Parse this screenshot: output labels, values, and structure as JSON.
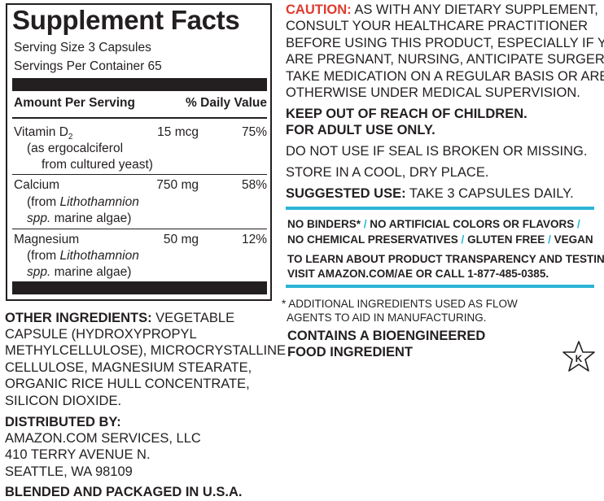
{
  "facts": {
    "title": "Supplement Facts",
    "serving_size": "Serving Size 3 Capsules",
    "servings_per_container": "Servings Per Container 65",
    "col_amount": "Amount Per Serving",
    "col_dv": "% Daily Value",
    "rows": [
      {
        "name": "Vitamin D",
        "name_sub": "2",
        "amount": "15 mcg",
        "dv": "75%",
        "line2": "(as ergocalciferol",
        "line3": "from cultured yeast)"
      },
      {
        "name": "Calcium",
        "amount": "750 mg",
        "dv": "58%",
        "line2_pre": "(from ",
        "line2_italic": "Lithothamnion",
        "line3_italic": "spp.",
        "line3_post": " marine algae)"
      },
      {
        "name": "Magnesium",
        "amount": "50 mg",
        "dv": "12%",
        "line2_pre": "(from ",
        "line2_italic": "Lithothamnion",
        "line3_italic": "spp.",
        "line3_post": " marine algae)"
      }
    ]
  },
  "other": {
    "label": "OTHER INGREDIENTS:",
    "l1": " VEGETABLE",
    "l2": "CAPSULE (HYDROXYPROPYL",
    "l3": "METHYLCELLULOSE), MICROCRYSTALLINE",
    "l4": "CELLULOSE, MAGNESIUM STEARATE,",
    "l5": "ORGANIC RICE HULL CONCENTRATE,",
    "l6": "SILICON DIOXIDE."
  },
  "distributor": {
    "label": "DISTRIBUTED BY:",
    "l1": "AMAZON.COM SERVICES, LLC",
    "l2": "410 TERRY AVENUE N.",
    "l3": "SEATTLE, WA 98109",
    "origin": "BLENDED AND PACKAGED IN U.S.A."
  },
  "caution": {
    "label": "CAUTION:",
    "l1": " AS WITH ANY DIETARY SUPPLEMENT,",
    "l2": "CONSULT YOUR HEALTHCARE PRACTITIONER",
    "l3": "BEFORE USING THIS PRODUCT, ESPECIALLY IF YOU",
    "l4": "ARE PREGNANT, NURSING, ANTICIPATE SURGERY,",
    "l5": "TAKE MEDICATION ON A REGULAR BASIS OR ARE",
    "l6": "OTHERWISE UNDER MEDICAL SUPERVISION."
  },
  "warnings": {
    "keep_out": "KEEP OUT OF REACH OF CHILDREN.",
    "adult": "FOR ADULT USE ONLY.",
    "seal": "DO NOT USE IF SEAL IS BROKEN OR MISSING.",
    "store": "STORE IN A COOL, DRY PLACE.",
    "suggested_label": "SUGGESTED USE:",
    "suggested_text": " TAKE 3 CAPSULES DAILY."
  },
  "claims": {
    "c1": "NO BINDERS*",
    "c2": "NO ARTIFICIAL COLORS OR FLAVORS",
    "c3": "NO CHEMICAL PRESERVATIVES",
    "c4": "GLUTEN FREE",
    "c5": "VEGAN",
    "sep": " / ",
    "learn1": "TO LEARN ABOUT PRODUCT TRANSPARENCY AND TESTING,",
    "learn2": "VISIT AMAZON.COM/AE OR CALL 1-877-485-0385."
  },
  "footnote": {
    "l1": "* ADDITIONAL INGREDIENTS USED AS FLOW",
    "l2": "AGENTS TO AID IN MANUFACTURING.",
    "bio1": "CONTAINS A BIOENGINEERED",
    "bio2": "FOOD INGREDIENT"
  },
  "kosher_symbol": "K",
  "colors": {
    "caution_red": "#e03a2e",
    "accent_teal": "#2bb5d6",
    "ink": "#231f20"
  }
}
